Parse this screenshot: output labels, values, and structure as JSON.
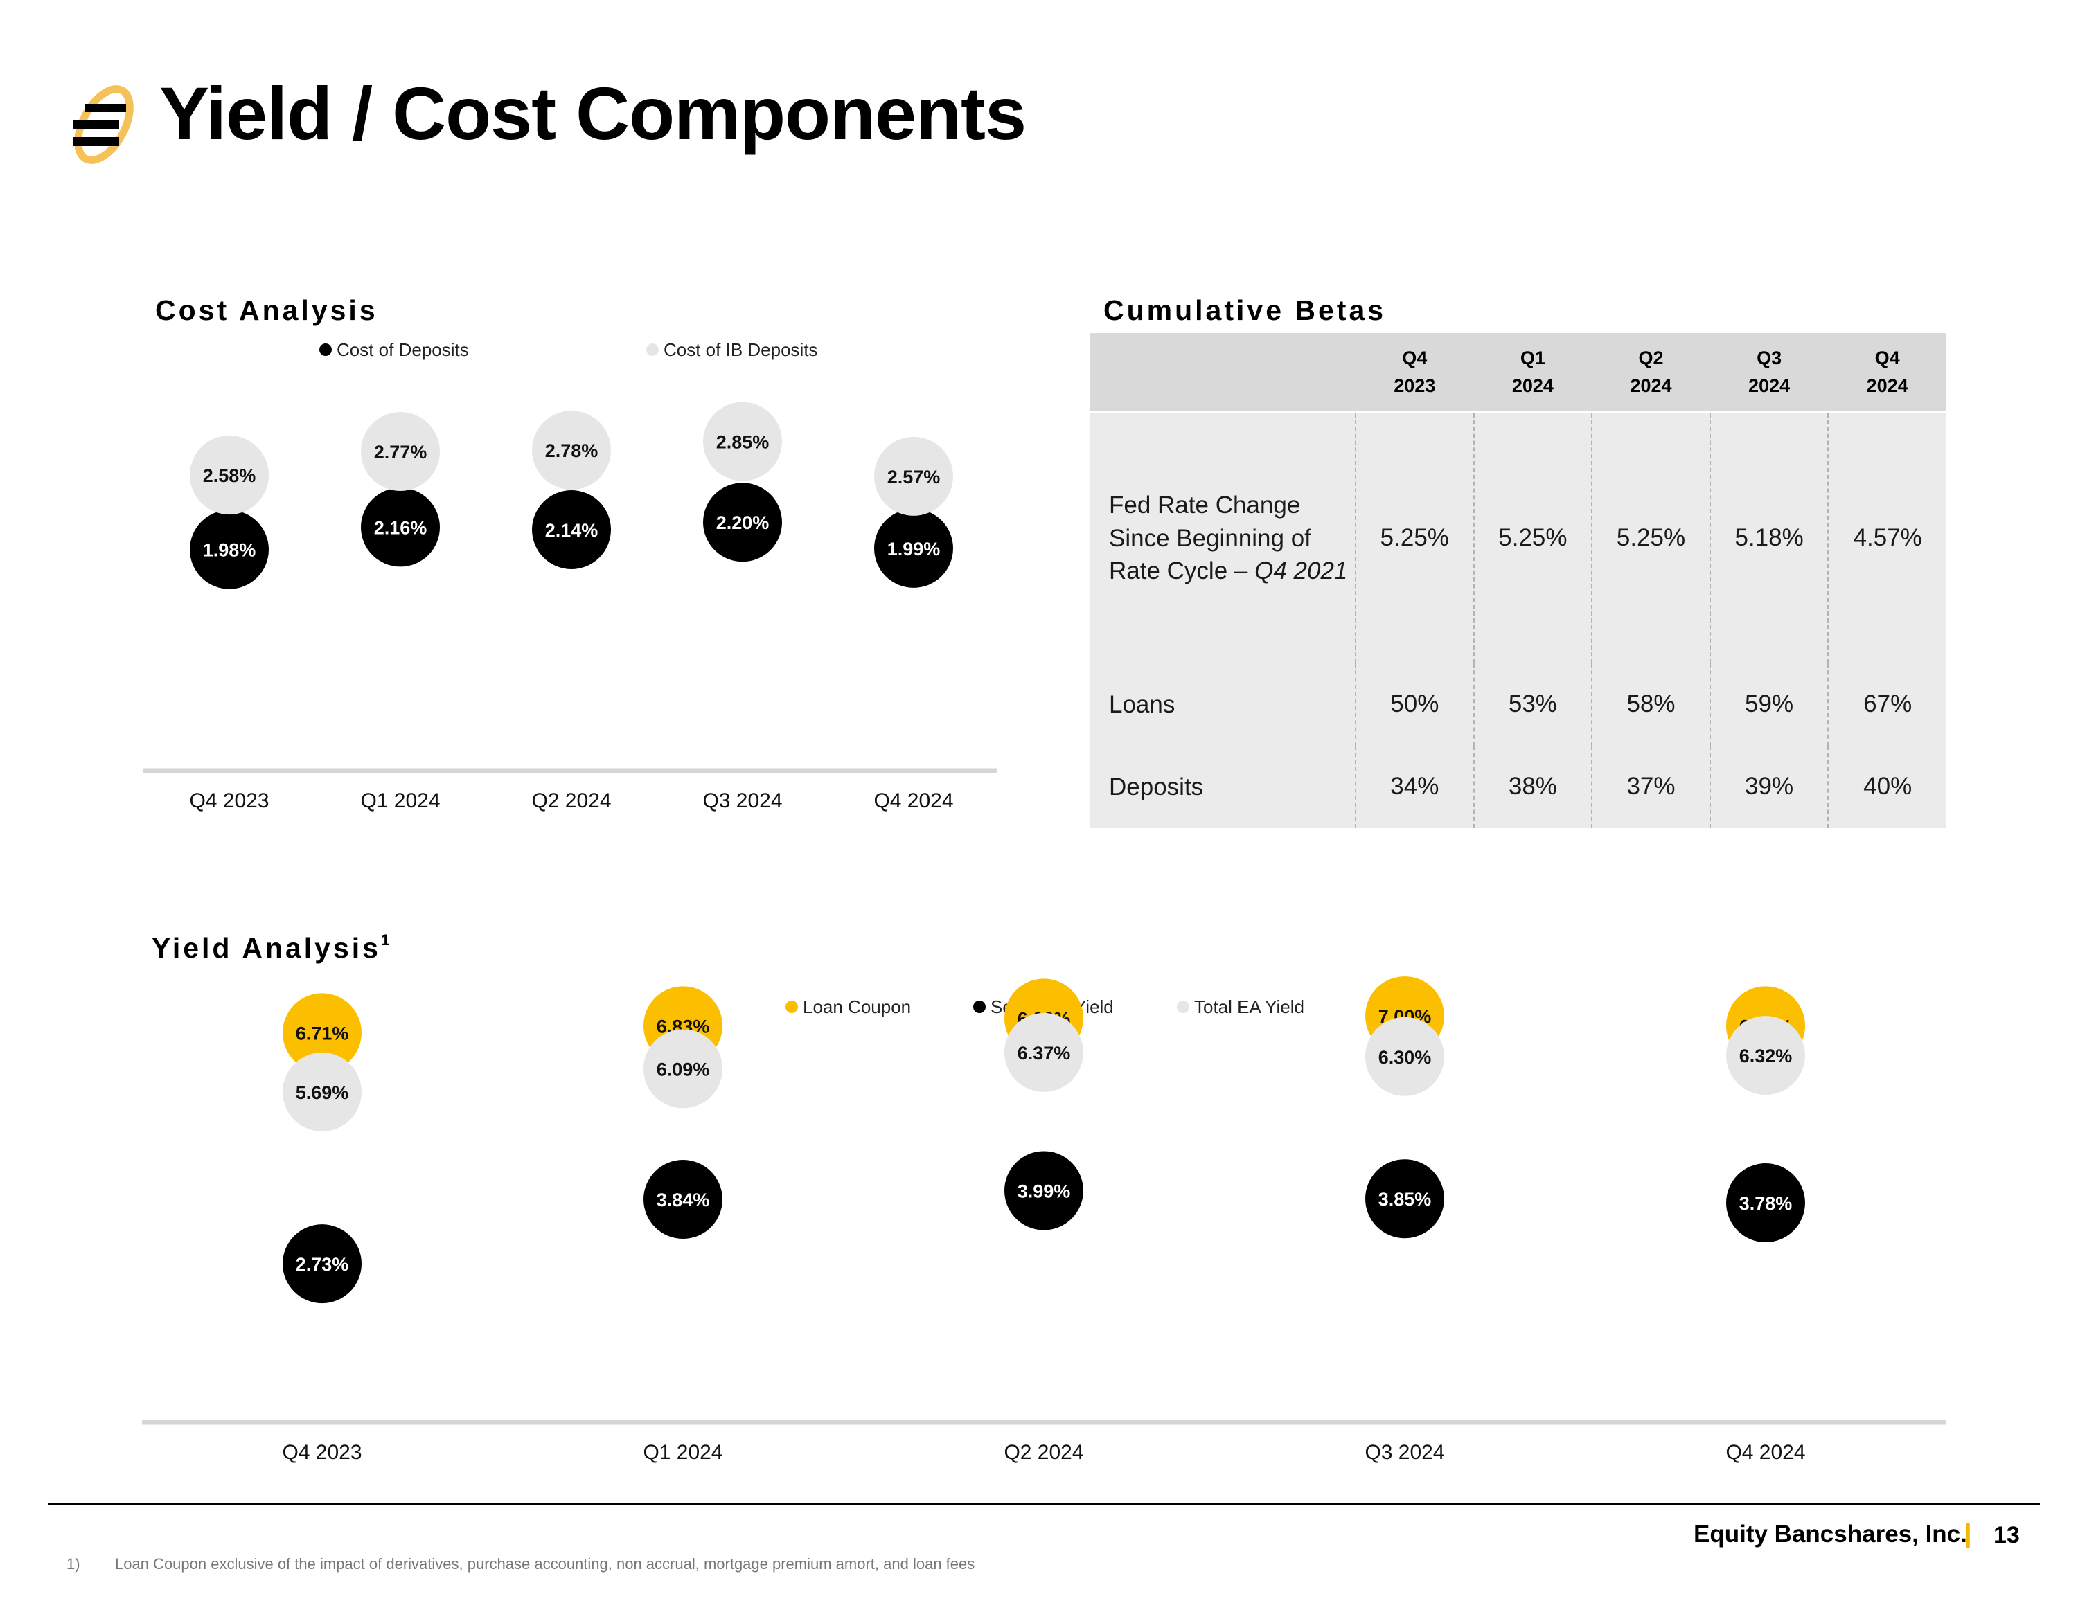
{
  "page": {
    "title": "Yield / Cost Components",
    "logo_icon": "equity-bank-logo-icon"
  },
  "cost_analysis": {
    "title": "Cost Analysis",
    "legend": [
      {
        "label": "Cost of Deposits",
        "color": "#000000"
      },
      {
        "label": "Cost of IB Deposits",
        "color": "#e6e6e6"
      }
    ]
  },
  "yield_analysis": {
    "title": "Yield Analysis",
    "footnote_marker": "1",
    "legend": [
      {
        "label": "Loan Coupon",
        "color": "#fbbf00"
      },
      {
        "label": "Securities Yield",
        "color": "#000000"
      },
      {
        "label": "Total EA Yield",
        "color": "#e6e6e6"
      }
    ]
  },
  "chart_data": [
    {
      "type": "scatter",
      "title": "Cost Analysis",
      "categories": [
        "Q4 2023",
        "Q1 2024",
        "Q2 2024",
        "Q3 2024",
        "Q4 2024"
      ],
      "series": [
        {
          "name": "Cost of Deposits",
          "color": "#000000",
          "values": [
            1.98,
            2.16,
            2.14,
            2.2,
            1.99
          ],
          "labels": [
            "1.98%",
            "2.16%",
            "2.14%",
            "2.20%",
            "1.99%"
          ]
        },
        {
          "name": "Cost of IB Deposits",
          "color": "#e6e6e6",
          "values": [
            2.58,
            2.77,
            2.78,
            2.85,
            2.57
          ],
          "labels": [
            "2.58%",
            "2.77%",
            "2.78%",
            "2.85%",
            "2.57%"
          ]
        }
      ],
      "ylim": [
        0.2,
        3.45
      ],
      "grid": false,
      "legend_position": "top"
    },
    {
      "type": "scatter",
      "title": "Yield Analysis",
      "categories": [
        "Q4 2023",
        "Q1 2024",
        "Q2 2024",
        "Q3 2024",
        "Q4 2024"
      ],
      "series": [
        {
          "name": "Loan Coupon",
          "color": "#fbbf00",
          "values": [
            6.71,
            6.83,
            6.96,
            7.0,
            6.83
          ],
          "labels": [
            "6.71%",
            "6.83%",
            "6.96%",
            "7.00%",
            "6.83%"
          ]
        },
        {
          "name": "Securities Yield",
          "color": "#000000",
          "values": [
            2.73,
            3.84,
            3.99,
            3.85,
            3.78
          ],
          "labels": [
            "2.73%",
            "3.84%",
            "3.99%",
            "3.85%",
            "3.78%"
          ]
        },
        {
          "name": "Total EA Yield",
          "color": "#e6e6e6",
          "values": [
            5.69,
            6.09,
            6.37,
            6.3,
            6.32
          ],
          "labels": [
            "5.69%",
            "6.09%",
            "6.37%",
            "6.30%",
            "6.32%"
          ]
        }
      ],
      "ylim": [
        0.0,
        7.8
      ],
      "grid": false,
      "legend_position": "top"
    }
  ],
  "cumulative_betas": {
    "title": "Cumulative Betas",
    "columns": [
      [
        "Q4",
        "2023"
      ],
      [
        "Q1",
        "2024"
      ],
      [
        "Q2",
        "2024"
      ],
      [
        "Q3",
        "2024"
      ],
      [
        "Q4",
        "2024"
      ]
    ],
    "rows": [
      {
        "label_lines": [
          "Fed Rate Change",
          "Since Beginning of",
          "Rate Cycle – "
        ],
        "label_italic": "Q4 2021",
        "values": [
          "5.25%",
          "5.25%",
          "5.25%",
          "5.18%",
          "4.57%"
        ]
      },
      {
        "label_lines": [
          "Loans"
        ],
        "label_italic": "",
        "values": [
          "50%",
          "53%",
          "58%",
          "59%",
          "67%"
        ]
      },
      {
        "label_lines": [
          "Deposits"
        ],
        "label_italic": "",
        "values": [
          "34%",
          "38%",
          "37%",
          "39%",
          "40%"
        ]
      }
    ]
  },
  "footer": {
    "company": "Equity Bancshares, Inc.",
    "separator": "|",
    "page_number": "13",
    "footnote_number": "1)",
    "footnote_text": "Loan Coupon exclusive of the impact of  derivatives, purchase accounting, non accrual, mortgage premium amort, and loan fees"
  }
}
